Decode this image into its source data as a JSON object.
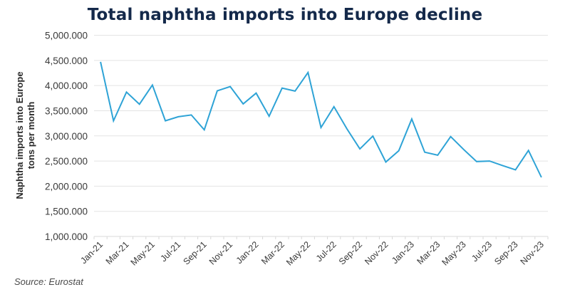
{
  "chart_data": {
    "type": "line",
    "title": "Total naphtha imports into Europe decline",
    "xlabel": "",
    "ylabel": [
      "Naphtha imports into Europe",
      "tons per month"
    ],
    "ylim": [
      1000000,
      5000000
    ],
    "yticks": [
      1000000,
      1500000,
      2000000,
      2500000,
      3000000,
      3500000,
      4000000,
      4500000,
      5000000
    ],
    "ytick_labels": [
      "1,000.000",
      "1,500.000",
      "2,000.000",
      "2,500.000",
      "3,000.000",
      "3,500.000",
      "4,000.000",
      "4,500.000",
      "5,000.000"
    ],
    "grid": true,
    "legend": "none",
    "categories": [
      "Jan-21",
      "Feb-21",
      "Mar-21",
      "Apr-21",
      "May-21",
      "Jun-21",
      "Jul-21",
      "Aug-21",
      "Sep-21",
      "Oct-21",
      "Nov-21",
      "Dec-21",
      "Jan-22",
      "Feb-22",
      "Mar-22",
      "Apr-22",
      "May-22",
      "Jun-22",
      "Jul-22",
      "Aug-22",
      "Sep-22",
      "Oct-22",
      "Nov-22",
      "Dec-22",
      "Jan-23",
      "Feb-23",
      "Mar-23",
      "Apr-23",
      "May-23",
      "Jun-23",
      "Jul-23",
      "Aug-23",
      "Sep-23",
      "Oct-23",
      "Nov-23"
    ],
    "shown_xtick_labels": [
      "Jan-21",
      "Mar-21",
      "May-21",
      "Jul-21",
      "Sep-21",
      "Nov-21",
      "Jan-22",
      "Mar-22",
      "May-22",
      "Jul-22",
      "Sep-22",
      "Nov-22",
      "Jan-23",
      "Mar-23",
      "May-23",
      "Jul-23",
      "Sep-23",
      "Nov-23"
    ],
    "series": [
      {
        "name": "Naphtha imports",
        "color": "#2ea3d6",
        "values": [
          4470000,
          3300000,
          3870000,
          3630000,
          4010000,
          3300000,
          3380000,
          3415000,
          3120000,
          3895000,
          3980000,
          3635000,
          3850000,
          3390000,
          3950000,
          3890000,
          4260000,
          3165000,
          3580000,
          3140000,
          2740000,
          2995000,
          2480000,
          2705000,
          3335000,
          2675000,
          2615000,
          2985000,
          2730000,
          2490000,
          2500000,
          2410000,
          2325000,
          2710000,
          2175000
        ]
      }
    ]
  },
  "source": "Source: Eurostat"
}
